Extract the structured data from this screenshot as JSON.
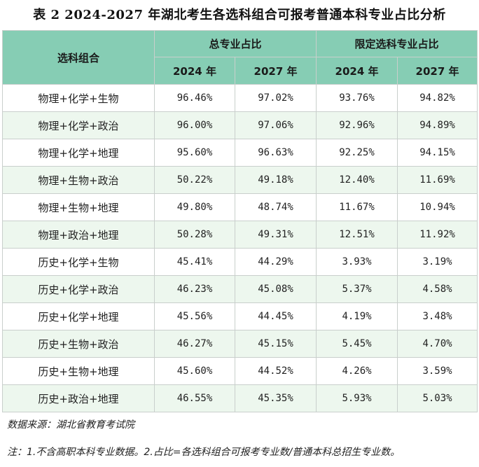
{
  "title": "表 2 2024-2027 年湖北考生各选科组合可报考普通本科专业占比分析",
  "header": {
    "combo_label": "选科组合",
    "group1_label": "总专业占比",
    "group2_label": "限定选科专业占比",
    "year_a": "2024 年",
    "year_b": "2027 年"
  },
  "rows": [
    {
      "combo": "物理+化学+生物",
      "v1": "96.46%",
      "v2": "97.02%",
      "v3": "93.76%",
      "v4": "94.82%"
    },
    {
      "combo": "物理+化学+政治",
      "v1": "96.00%",
      "v2": "97.06%",
      "v3": "92.96%",
      "v4": "94.89%"
    },
    {
      "combo": "物理+化学+地理",
      "v1": "95.60%",
      "v2": "96.63%",
      "v3": "92.25%",
      "v4": "94.15%"
    },
    {
      "combo": "物理+生物+政治",
      "v1": "50.22%",
      "v2": "49.18%",
      "v3": "12.40%",
      "v4": "11.69%"
    },
    {
      "combo": "物理+生物+地理",
      "v1": "49.80%",
      "v2": "48.74%",
      "v3": "11.67%",
      "v4": "10.94%"
    },
    {
      "combo": "物理+政治+地理",
      "v1": "50.28%",
      "v2": "49.31%",
      "v3": "12.51%",
      "v4": "11.92%"
    },
    {
      "combo": "历史+化学+生物",
      "v1": "45.41%",
      "v2": "44.29%",
      "v3": "3.93%",
      "v4": "3.19%"
    },
    {
      "combo": "历史+化学+政治",
      "v1": "46.23%",
      "v2": "45.08%",
      "v3": "5.37%",
      "v4": "4.58%"
    },
    {
      "combo": "历史+化学+地理",
      "v1": "45.56%",
      "v2": "44.45%",
      "v3": "4.19%",
      "v4": "3.48%"
    },
    {
      "combo": "历史+生物+政治",
      "v1": "46.27%",
      "v2": "45.15%",
      "v3": "5.45%",
      "v4": "4.70%"
    },
    {
      "combo": "历史+生物+地理",
      "v1": "45.60%",
      "v2": "44.52%",
      "v3": "4.26%",
      "v4": "3.59%"
    },
    {
      "combo": "历史+政治+地理",
      "v1": "46.55%",
      "v2": "45.35%",
      "v3": "5.93%",
      "v4": "5.03%"
    }
  ],
  "notes": {
    "source": "数据来源：湖北省教育考试院",
    "note": "注：1.不含高职本科专业数据。2.占比=各选科组合可报考专业数/普通本科总招生专业数。"
  },
  "colors": {
    "header_bg": "#86cdb4",
    "row_alt_bg": "#edf7ee"
  }
}
